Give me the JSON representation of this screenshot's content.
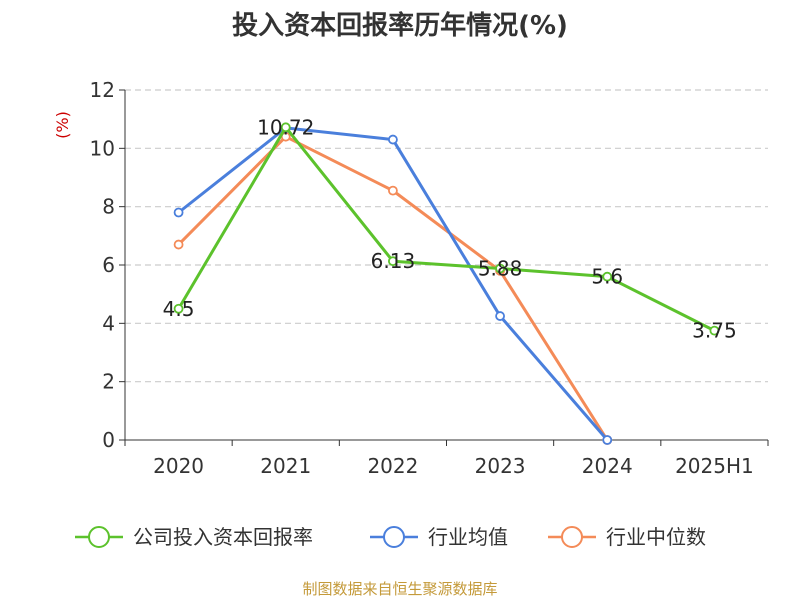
{
  "chart_data": {
    "type": "line",
    "title": "投入资本回报率历年情况(%)",
    "ylabel": "(%)",
    "ylim": [
      0,
      12
    ],
    "yticks": [
      0,
      2,
      4,
      6,
      8,
      10,
      12
    ],
    "categories": [
      "2020",
      "2021",
      "2022",
      "2023",
      "2024",
      "2025H1"
    ],
    "grid": "horizontal-dashed",
    "legend_position": "bottom",
    "series": [
      {
        "name": "公司投入资本回报率",
        "color": "#5cc22c",
        "values": [
          4.5,
          10.72,
          6.13,
          5.88,
          5.6,
          3.75
        ],
        "labels": [
          "4.5",
          "10.72",
          "6.13",
          "5.88",
          "5.6",
          "3.75"
        ]
      },
      {
        "name": "行业均值",
        "color": "#4a7fdc",
        "values": [
          7.8,
          10.7,
          10.3,
          4.25,
          0.0,
          null
        ]
      },
      {
        "name": "行业中位数",
        "color": "#f48b58",
        "values": [
          6.7,
          10.4,
          8.55,
          5.8,
          0.0,
          null
        ]
      }
    ]
  },
  "source": "制图数据来自恒生聚源数据库",
  "colors": {
    "title": "#333333",
    "axis": "#333333",
    "unit": "#cc0000",
    "source": "#c49a3a",
    "grid": "#cccccc"
  }
}
